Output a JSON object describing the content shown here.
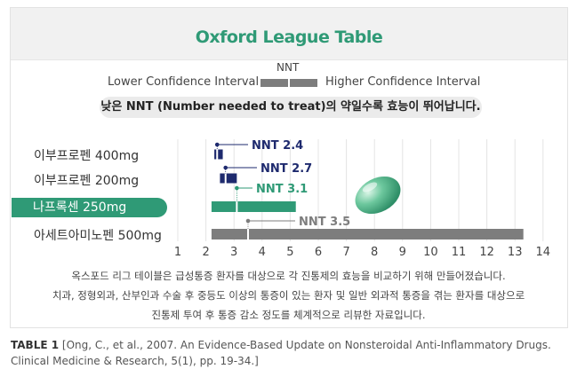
{
  "title": "Oxford League Table",
  "legend": {
    "nnt_label": "NNT",
    "lower_label": "Lower Confidence Interval",
    "higher_label": "Higher Confidence Interval"
  },
  "note": "낮은 NNT (Number needed to treat)의 약일수록 효능이 뛰어납니다.",
  "colors": {
    "accent_green": "#2f9a76",
    "navy": "#1e2a6e",
    "gray": "#7d7d7d"
  },
  "chart_data": {
    "type": "bar",
    "orientation": "horizontal",
    "xlim": [
      1,
      14
    ],
    "xticks": [
      "1",
      "2",
      "3",
      "4",
      "5",
      "6",
      "7",
      "8",
      "9",
      "10",
      "11",
      "12",
      "13",
      "14"
    ],
    "grid": true,
    "rows": [
      {
        "drug": "이부프로펜 400mg",
        "nnt": 2.4,
        "lower": 2.3,
        "upper": 2.6,
        "label": "NNT 2.4",
        "color": "navy"
      },
      {
        "drug": "이부프로펜 200mg",
        "nnt": 2.7,
        "lower": 2.5,
        "upper": 3.1,
        "label": "NNT 2.7",
        "color": "navy"
      },
      {
        "drug": "나프록센 250mg",
        "nnt": 3.1,
        "lower": 2.2,
        "upper": 5.2,
        "label": "NNT 3.1",
        "color": "accent_green",
        "highlight": true
      },
      {
        "drug": "아세트아미노펜 500mg",
        "nnt": 3.5,
        "lower": 2.2,
        "upper": 13.3,
        "label": "NNT 3.5",
        "color": "gray"
      }
    ]
  },
  "footnote_lines": [
    "옥스포드 리그 테이블은 급성통증 환자를 대상으로 각 진통제의 효능을 비교하기 위해 만들어졌습니다.",
    "치과, 정형외과, 산부인과 수술 후 중등도 이상의 통증이 있는 환자 및 일반 외과적 통증을 겪는 환자를 대상으로",
    "진통제 투여 후 통증 감소 정도를 체계적으로 리뷰한 자료입니다."
  ],
  "caption": {
    "label": "TABLE 1",
    "line1": "[Ong, C., et al., 2007. An Evidence-Based Update on Nonsteroidal Anti-Inflammatory Drugs.",
    "line2": "Clinical Medicine & Research, 5(1), pp. 19-34.]"
  }
}
